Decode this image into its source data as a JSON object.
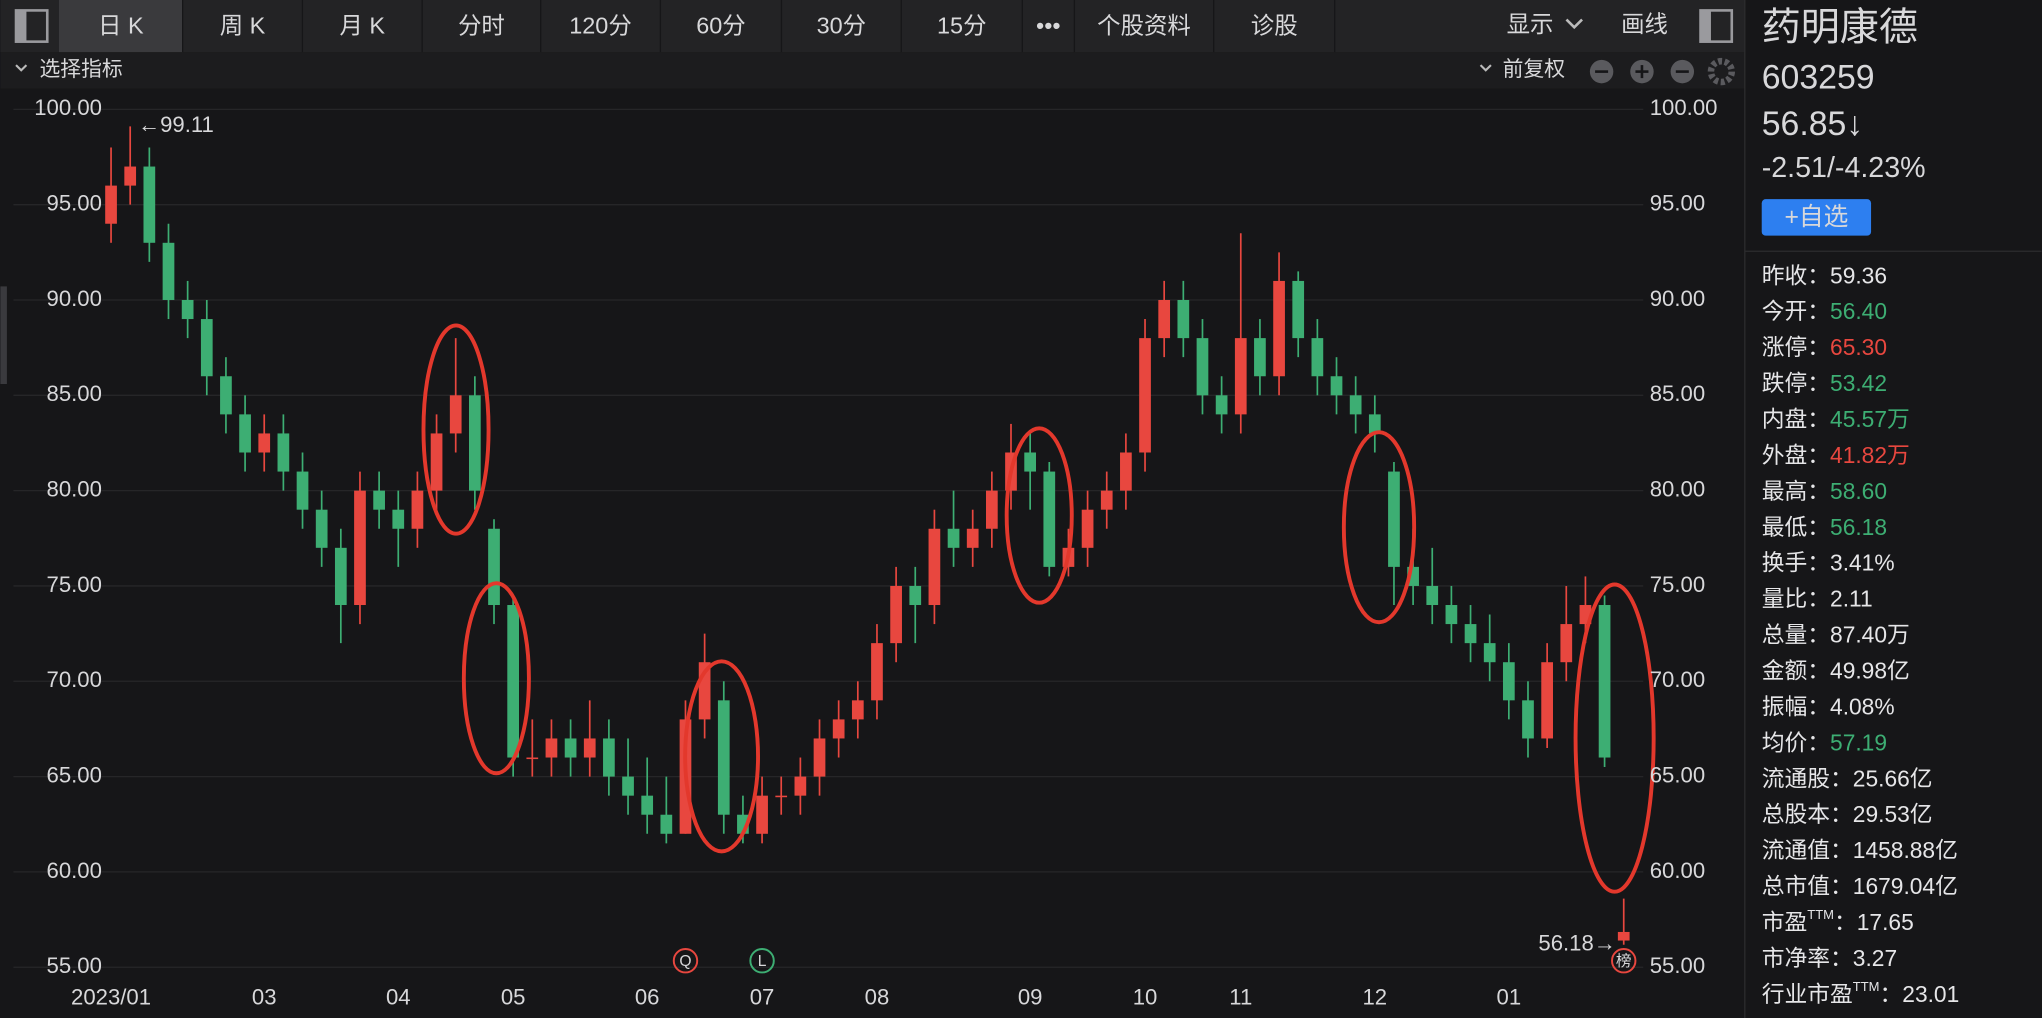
{
  "toolbar": {
    "tabs": [
      "日 K",
      "周 K",
      "月 K",
      "分时",
      "120分",
      "60分",
      "30分",
      "15分",
      "•••",
      "个股资料",
      "诊股"
    ],
    "selected": 0,
    "right": [
      "显示",
      "画线"
    ]
  },
  "subbar": {
    "indicator": "选择指标",
    "adjust": "前复权"
  },
  "quote": {
    "name": "药明康德",
    "code": "603259",
    "price": "56.85↓",
    "change": "-2.51/-4.23%",
    "watch_button": "+自选"
  },
  "stats": {
    "separator": "：",
    "rows": [
      {
        "label": "昨收",
        "value": "59.36",
        "color": "#e6e6e8"
      },
      {
        "label": "今开",
        "value": "56.40",
        "color": "#3dae73"
      },
      {
        "label": "涨停",
        "value": "65.30",
        "color": "#e8473f"
      },
      {
        "label": "跌停",
        "value": "53.42",
        "color": "#3dae73"
      },
      {
        "label": "内盘",
        "value": "45.57万",
        "color": "#3dae73"
      },
      {
        "label": "外盘",
        "value": "41.82万",
        "color": "#e8473f"
      },
      {
        "label": "最高",
        "value": "58.60",
        "color": "#3dae73"
      },
      {
        "label": "最低",
        "value": "56.18",
        "color": "#3dae73"
      },
      {
        "label": "换手",
        "value": "3.41%",
        "color": "#e6e6e8"
      },
      {
        "label": "量比",
        "value": "2.11",
        "color": "#e6e6e8"
      },
      {
        "label": "总量",
        "value": "87.40万",
        "color": "#e6e6e8"
      },
      {
        "label": "金额",
        "value": "49.98亿",
        "color": "#e6e6e8"
      },
      {
        "label": "振幅",
        "value": "4.08%",
        "color": "#e6e6e8"
      },
      {
        "label": "均价",
        "value": "57.19",
        "color": "#3dae73"
      },
      {
        "label": "流通股",
        "value": "25.66亿",
        "color": "#e6e6e8"
      },
      {
        "label": "总股本",
        "value": "29.53亿",
        "color": "#e6e6e8"
      },
      {
        "label": "流通值",
        "value": "1458.88亿",
        "color": "#e6e6e8"
      },
      {
        "label": "总市值",
        "value": "1679.04亿",
        "color": "#e6e6e8"
      },
      {
        "label": "市盈",
        "sup": "TTM",
        "value": "17.65",
        "color": "#e6e6e8"
      },
      {
        "label": "市净率",
        "value": "3.27",
        "color": "#e6e6e8"
      },
      {
        "label": "行业市盈",
        "sup": "TTM",
        "value": "23.01",
        "color": "#e6e6e8"
      }
    ]
  },
  "chart_data": {
    "type": "candlestick",
    "open": [
      94,
      96,
      97,
      93,
      90,
      89,
      86,
      84,
      82,
      83,
      81,
      79,
      77,
      74,
      80,
      79,
      78,
      80,
      83,
      85,
      78,
      74,
      66,
      66,
      67,
      66,
      67,
      65,
      64,
      63,
      62,
      68,
      69,
      63,
      62,
      64,
      64,
      65,
      67,
      68,
      69,
      72,
      75,
      74,
      78,
      77,
      78,
      80,
      82,
      81,
      76,
      77,
      79,
      80,
      82,
      88,
      90,
      88,
      85,
      84,
      88,
      86,
      91,
      88,
      86,
      85,
      84,
      81,
      76,
      75,
      74,
      73,
      72,
      71,
      69,
      67,
      71,
      73,
      74,
      56.4
    ],
    "high": [
      98,
      99.11,
      98,
      94,
      91,
      90,
      87,
      85,
      84,
      84,
      82,
      80,
      78,
      81,
      81,
      80,
      81,
      84,
      88,
      86,
      78.5,
      74.5,
      68,
      68,
      68,
      69,
      68,
      67,
      66,
      65,
      69,
      72.5,
      70,
      64,
      65,
      65,
      66,
      68,
      69,
      70,
      73,
      76,
      76,
      79,
      80,
      79,
      81,
      83.5,
      83,
      81.5,
      78,
      80,
      81,
      83,
      89,
      91,
      91,
      89,
      86,
      93.5,
      89,
      92.5,
      91.5,
      89,
      87,
      86,
      85,
      81.5,
      78,
      77,
      75,
      74,
      73.5,
      72,
      70,
      72,
      75,
      75.5,
      74.5,
      58.6
    ],
    "low": [
      93,
      95,
      92,
      89,
      88,
      85,
      83,
      81,
      81,
      80,
      78,
      76,
      72,
      73,
      78,
      76,
      77,
      79,
      82,
      79,
      73,
      65,
      65,
      65,
      65,
      65,
      64,
      63,
      62,
      61.5,
      62,
      67,
      62,
      61.5,
      61.5,
      63,
      63,
      64,
      66,
      67,
      68,
      71,
      72,
      73,
      76,
      76,
      77,
      79,
      79,
      75.5,
      75.5,
      76,
      78,
      79,
      81,
      87,
      87,
      84,
      83,
      83,
      85,
      85,
      87,
      85,
      84,
      83,
      82,
      74,
      74,
      73,
      72,
      71,
      70,
      68,
      66,
      66.5,
      70,
      72,
      65.5,
      56.18
    ],
    "close": [
      96,
      97,
      93,
      90,
      89,
      86,
      84,
      82,
      83,
      81,
      79,
      77,
      74,
      80,
      79,
      78,
      80,
      83,
      85,
      80,
      74,
      66,
      66,
      67,
      66,
      67,
      65,
      64,
      63,
      62,
      68,
      71,
      63,
      62,
      64,
      64,
      65,
      67,
      68,
      69,
      72,
      75,
      74,
      78,
      77,
      78,
      80,
      82,
      81,
      76,
      77,
      79,
      80,
      82,
      88,
      90,
      88,
      85,
      84,
      88,
      86,
      91,
      88,
      86,
      85,
      84,
      83,
      76,
      75,
      74,
      73,
      72,
      71,
      69,
      67,
      71,
      73,
      74,
      66,
      56.85
    ],
    "up_color": "#e8473f",
    "down_color": "#3dae73",
    "xlim": [
      0,
      79
    ],
    "ylim": [
      55,
      100
    ],
    "yticks": [
      {
        "value": 55,
        "label": "55.00"
      },
      {
        "value": 60,
        "label": "60.00"
      },
      {
        "value": 65,
        "label": "65.00"
      },
      {
        "value": 70,
        "label": "70.00"
      },
      {
        "value": 75,
        "label": "75.00"
      },
      {
        "value": 80,
        "label": "80.00"
      },
      {
        "value": 85,
        "label": "85.00"
      },
      {
        "value": 90,
        "label": "90.00"
      },
      {
        "value": 95,
        "label": "95.00"
      },
      {
        "value": 100,
        "label": "100.00"
      }
    ],
    "xticks": [
      {
        "value": 0,
        "label": "2023/01"
      },
      {
        "value": 8,
        "label": "03"
      },
      {
        "value": 15,
        "label": "04"
      },
      {
        "value": 21,
        "label": "05"
      },
      {
        "value": 28,
        "label": "06"
      },
      {
        "value": 34,
        "label": "07"
      },
      {
        "value": 40,
        "label": "08"
      },
      {
        "value": 48,
        "label": "09"
      },
      {
        "value": 54,
        "label": "10"
      },
      {
        "value": 59,
        "label": "11"
      },
      {
        "value": 66,
        "label": "12"
      },
      {
        "value": 73,
        "label": "01"
      }
    ],
    "grid": true,
    "annotations": [
      {
        "text": "←99.11",
        "index": 1,
        "value": 99.11,
        "anchor": "start"
      },
      {
        "text": "56.18→",
        "index": 79,
        "value": 56.18,
        "anchor": "end"
      }
    ],
    "events": [
      {
        "label": "Q",
        "index": 30,
        "color": "#e8473f"
      },
      {
        "label": "L",
        "index": 34,
        "color": "#3dae73"
      },
      {
        "label": "榜",
        "index": 79,
        "color": "#e8473f"
      }
    ]
  }
}
